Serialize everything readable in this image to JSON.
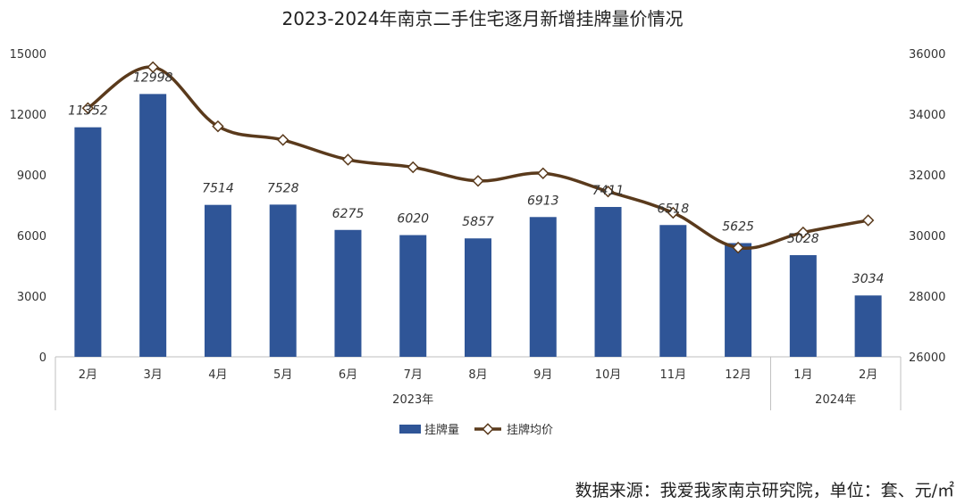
{
  "chart_data": {
    "type": "bar",
    "title": "2023-2024年南京二手住宅逐月新增挂牌量价情况",
    "categories": [
      "2月",
      "3月",
      "4月",
      "5月",
      "6月",
      "7月",
      "8月",
      "9月",
      "10月",
      "11月",
      "12月",
      "1月",
      "2月"
    ],
    "groups": [
      {
        "label": "2023年",
        "count": 11
      },
      {
        "label": "2024年",
        "count": 2
      }
    ],
    "series": [
      {
        "name": "挂牌量",
        "type": "bar",
        "axis": "left",
        "color": "#2f5597",
        "values": [
          11352,
          12998,
          7514,
          7528,
          6275,
          6020,
          5857,
          6913,
          7411,
          6518,
          5625,
          5028,
          3034
        ],
        "labels": [
          "11352",
          "12998",
          "7514",
          "7528",
          "6275",
          "6020",
          "5857",
          "6913",
          "7411",
          "6518",
          "5625",
          "5028",
          "3034"
        ]
      },
      {
        "name": "挂牌均价",
        "type": "line",
        "axis": "right",
        "color": "#5a3a1c",
        "values": [
          34200,
          35550,
          33600,
          33150,
          32500,
          32250,
          31800,
          32050,
          31450,
          30750,
          29600,
          30100,
          30500
        ]
      }
    ],
    "y_left": {
      "min": 0,
      "max": 15000,
      "ticks": [
        "0",
        "3000",
        "6000",
        "9000",
        "12000",
        "15000"
      ]
    },
    "y_right": {
      "min": 26000,
      "max": 36000,
      "ticks": [
        "26000",
        "28000",
        "30000",
        "32000",
        "34000",
        "36000"
      ]
    },
    "legend": {
      "position": "bottom",
      "items": [
        "挂牌量",
        "挂牌均价"
      ]
    },
    "source_note": "数据来源：我爱我家南京研究院，单位：套、元/㎡"
  }
}
